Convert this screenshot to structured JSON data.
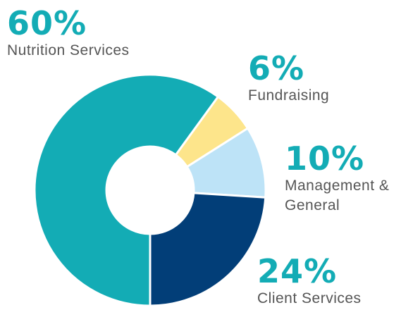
{
  "chart_data": {
    "type": "pie",
    "categories": [
      "Nutrition Services",
      "Fundraising",
      "Management & General",
      "Client Services"
    ],
    "values": [
      60,
      6,
      10,
      24
    ],
    "value_labels": [
      "60%",
      "6%",
      "10%",
      "24%"
    ],
    "colors": [
      "#13acb5",
      "#fde58b",
      "#bde3f7",
      "#023e78"
    ]
  }
}
